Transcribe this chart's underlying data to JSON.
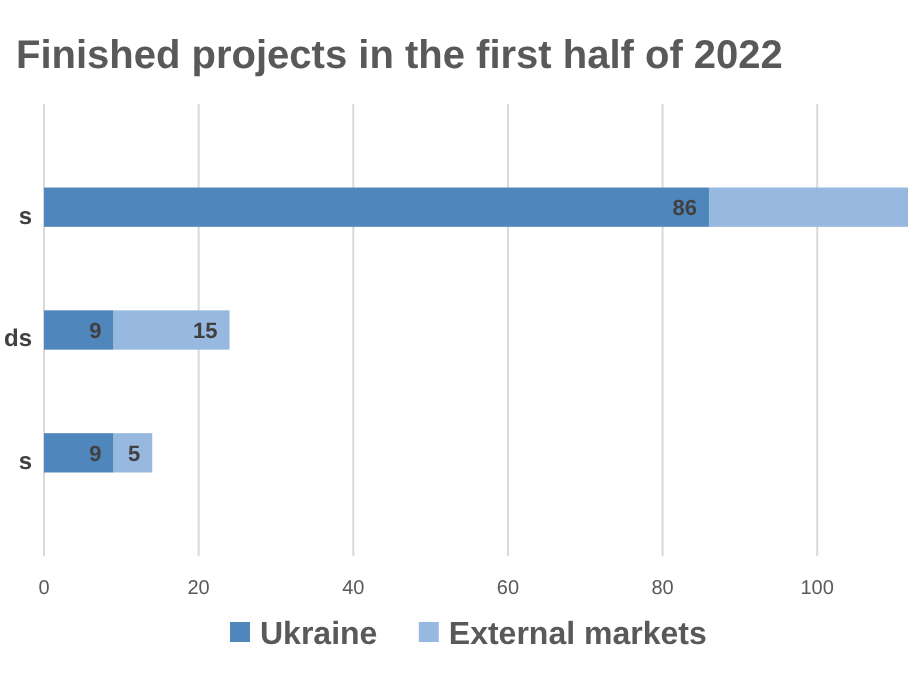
{
  "chart_data": {
    "type": "bar",
    "orientation": "horizontal",
    "stacked": true,
    "title": "Finished projects in the first half of 2022",
    "categories": [
      "s",
      "ds",
      "s"
    ],
    "series": [
      {
        "name": "Ukraine",
        "color": "#4f86bc",
        "values": [
          86,
          9,
          9
        ],
        "value_labels": [
          "86",
          "9",
          "9"
        ]
      },
      {
        "name": "External markets",
        "color": "#97b9e0",
        "values": [
          26,
          15,
          5
        ],
        "value_labels": [
          null,
          "15",
          "5"
        ]
      }
    ],
    "xlim": [
      0,
      112
    ],
    "xticks": [
      0,
      20,
      40,
      60,
      80,
      100
    ],
    "grid": "x",
    "legend": "bottom"
  }
}
